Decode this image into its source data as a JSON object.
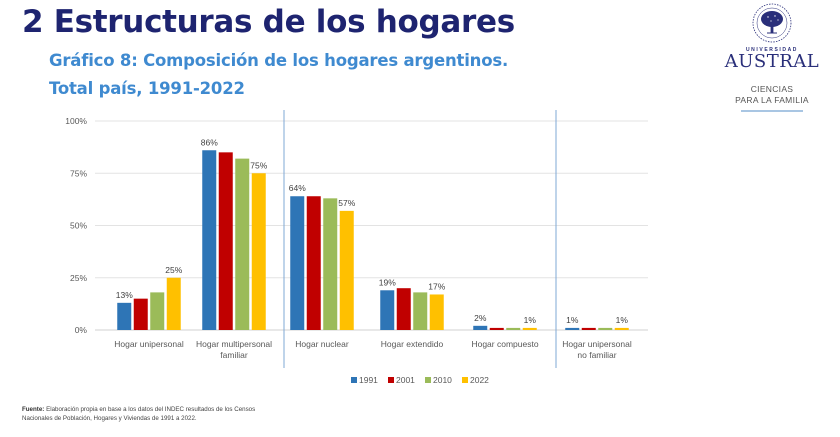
{
  "header": {
    "title": "2 Estructuras de los hogares",
    "subtitle_line1": "Gráfico 8: Composición de los hogares argentinos.",
    "subtitle_line2": "Total país, 1991-2022"
  },
  "logo": {
    "university_small": "UNIVERSIDAD",
    "university_name": "AUSTRAL",
    "faculty_line1": "CIENCIAS",
    "faculty_line2": "PARA LA FAMILIA",
    "brand_color": "#2a2f7a"
  },
  "source": {
    "label": "Fuente:",
    "text": "Elaboración propia en base a los datos del INDEC resultados de los Censos Nacionales de Población, Hogares y Viviendas de 1991 a 2022."
  },
  "chart_data": {
    "type": "bar",
    "title": "Composición de los hogares argentinos. Total país, 1991-2022",
    "xlabel": "",
    "ylabel": "",
    "ylim": [
      0,
      100
    ],
    "yticks": [
      0,
      25,
      50,
      75,
      100
    ],
    "ytick_labels": [
      "0%",
      "25%",
      "50%",
      "75%",
      "100%"
    ],
    "grid": true,
    "legend_position": "bottom",
    "categories": [
      [
        "Hogar unipersonal"
      ],
      [
        "Hogar multipersonal",
        "familiar"
      ],
      [
        "Hogar nuclear"
      ],
      [
        "Hogar extendido"
      ],
      [
        "Hogar compuesto"
      ],
      [
        "Hogar unipersonal",
        "no familiar"
      ]
    ],
    "group_separators_after": [
      1,
      4
    ],
    "series": [
      {
        "name": "1991",
        "color": "#2e75b6",
        "values": [
          13,
          86,
          64,
          19,
          2,
          1
        ]
      },
      {
        "name": "2001",
        "color": "#c00000",
        "values": [
          15,
          85,
          64,
          20,
          1,
          1
        ]
      },
      {
        "name": "2010",
        "color": "#9bbb59",
        "values": [
          18,
          82,
          63,
          18,
          1,
          1
        ]
      },
      {
        "name": "2022",
        "color": "#ffc000",
        "values": [
          25,
          75,
          57,
          17,
          1,
          1
        ]
      }
    ],
    "data_labels": [
      {
        "category": 0,
        "series": 0,
        "text": "13%"
      },
      {
        "category": 0,
        "series": 3,
        "text": "25%"
      },
      {
        "category": 1,
        "series": 0,
        "text": "86%"
      },
      {
        "category": 1,
        "series": 3,
        "text": "75%"
      },
      {
        "category": 2,
        "series": 0,
        "text": "64%"
      },
      {
        "category": 2,
        "series": 3,
        "text": "57%"
      },
      {
        "category": 3,
        "series": 0,
        "text": "19%"
      },
      {
        "category": 3,
        "series": 3,
        "text": "17%"
      },
      {
        "category": 4,
        "series": 0,
        "text": "2%"
      },
      {
        "category": 4,
        "series": 3,
        "text": "1%"
      },
      {
        "category": 5,
        "series": 0,
        "text": "1%"
      },
      {
        "category": 5,
        "series": 3,
        "text": "1%"
      }
    ]
  }
}
